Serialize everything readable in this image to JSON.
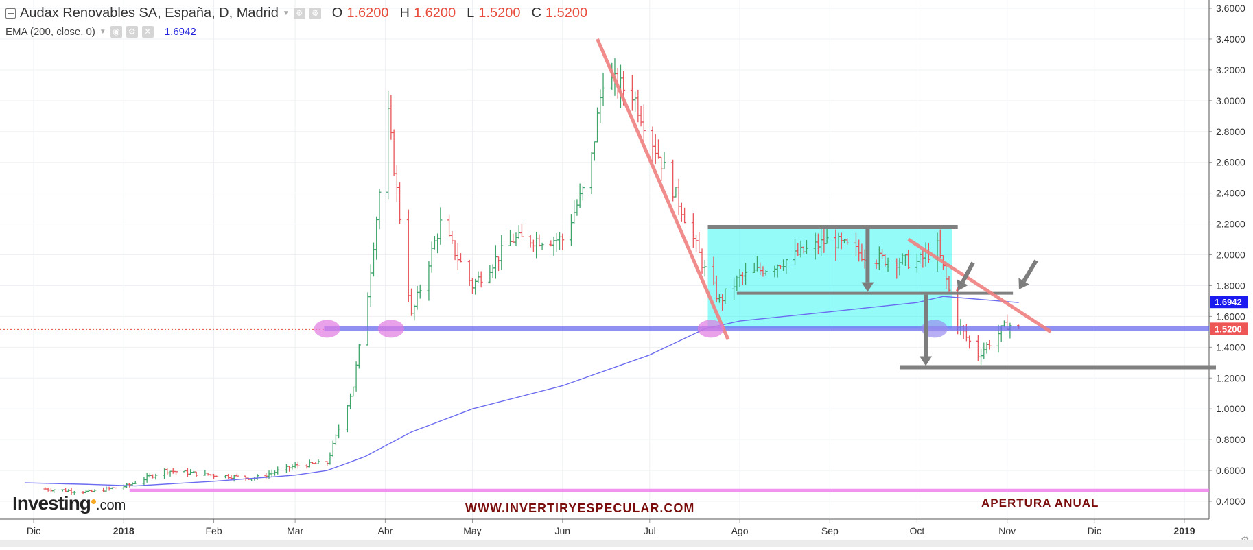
{
  "header": {
    "title": "Audax Renovables SA, España, D, Madrid",
    "ohlc": [
      {
        "key": "O",
        "value": "1.6200"
      },
      {
        "key": "H",
        "value": "1.6200"
      },
      {
        "key": "L",
        "value": "1.5200"
      },
      {
        "key": "C",
        "value": "1.5200"
      }
    ],
    "indicator": "EMA (200, close, 0)",
    "indicator_value": "1.6942"
  },
  "price_tags": {
    "ema": "1.6942",
    "close": "1.5200"
  },
  "annotations": {
    "watermark": "WWW.INVERTIRYESPECULAR.COM",
    "apertura": "APERTURA ANUAL",
    "logo_main": "Investing",
    "logo_suffix": ".com"
  },
  "colors": {
    "up_bar": "#3fa46a",
    "down_bar": "#e8555a",
    "ema_line": "#6b6bf0",
    "support_line": "#6b6bf0",
    "range_box": "#00f5f0",
    "trendline": "#f08080",
    "gray_levels": "#808080",
    "apertura_line": "#ee82ee",
    "ellipse": "#e07be0"
  },
  "chart_data": {
    "type": "line",
    "title": "Audax Renovables SA, España, D, Madrid",
    "xlabel": "",
    "ylabel": "",
    "ylim": [
      0.3,
      3.65
    ],
    "y_ticks": [
      "3.6000",
      "3.4000",
      "3.2000",
      "3.0000",
      "2.8000",
      "2.6000",
      "2.4000",
      "2.2000",
      "2.0000",
      "1.8000",
      "1.6000",
      "1.4000",
      "1.2000",
      "1.0000",
      "0.8000",
      "0.6000",
      "0.4000"
    ],
    "x_ticks": [
      "Dic",
      "2018",
      "Feb",
      "Mar",
      "Abr",
      "May",
      "Jun",
      "Jul",
      "Ago",
      "Sep",
      "Oct",
      "Nov",
      "Dic",
      "2019"
    ],
    "x_ticks_bold": [
      "2018",
      "2019"
    ],
    "grid": true,
    "series": [
      {
        "name": "Audax Renovables SA",
        "style": "ohlc-bars",
        "x": [
          "2017-12-05",
          "2017-12-20",
          "2018-01-02",
          "2018-01-15",
          "2018-02-01",
          "2018-02-15",
          "2018-03-01",
          "2018-03-12",
          "2018-03-21",
          "2018-03-26",
          "2018-04-02",
          "2018-04-10",
          "2018-04-20",
          "2018-05-01",
          "2018-05-15",
          "2018-06-01",
          "2018-06-10",
          "2018-06-15",
          "2018-06-25",
          "2018-07-05",
          "2018-07-12",
          "2018-07-20",
          "2018-07-25",
          "2018-08-01",
          "2018-08-15",
          "2018-09-01",
          "2018-09-15",
          "2018-10-01",
          "2018-10-08",
          "2018-10-15",
          "2018-10-22",
          "2018-11-01",
          "2018-11-05"
        ],
        "values": [
          0.48,
          0.46,
          0.5,
          0.6,
          0.57,
          0.55,
          0.63,
          0.65,
          1.15,
          1.75,
          2.9,
          1.6,
          2.2,
          1.8,
          2.1,
          2.1,
          2.5,
          3.15,
          3.05,
          2.6,
          2.3,
          1.9,
          1.7,
          1.85,
          1.95,
          2.1,
          1.98,
          1.95,
          2.05,
          1.55,
          1.35,
          1.55,
          1.52
        ]
      },
      {
        "name": "EMA (200, close, 0)",
        "style": "line",
        "x": [
          "2017-11-28",
          "2017-12-20",
          "2018-01-05",
          "2018-02-01",
          "2018-03-01",
          "2018-03-12",
          "2018-03-25",
          "2018-04-10",
          "2018-05-01",
          "2018-06-01",
          "2018-07-01",
          "2018-07-20",
          "2018-08-01",
          "2018-09-01",
          "2018-10-01",
          "2018-10-10",
          "2018-11-05"
        ],
        "values": [
          0.52,
          0.51,
          0.5,
          0.53,
          0.57,
          0.6,
          0.69,
          0.85,
          1.0,
          1.15,
          1.35,
          1.52,
          1.57,
          1.63,
          1.69,
          1.73,
          1.69
        ]
      }
    ],
    "horizontal_lines": [
      {
        "y": 1.52
      },
      {
        "y": 0.47
      },
      {
        "y": 2.18
      },
      {
        "y": 1.75
      },
      {
        "y": 1.27
      }
    ],
    "trendlines": [
      {
        "from": {
          "x": "2018-06-13",
          "y": 3.4
        },
        "to": {
          "x": "2018-07-28",
          "y": 1.45
        }
      },
      {
        "from": {
          "x": "2018-09-28",
          "y": 2.1
        },
        "to": {
          "x": "2018-11-16",
          "y": 1.5
        }
      }
    ],
    "highlight_box": {
      "x": [
        "2018-07-21",
        "2018-10-13"
      ],
      "y": [
        1.52,
        2.18
      ]
    }
  }
}
